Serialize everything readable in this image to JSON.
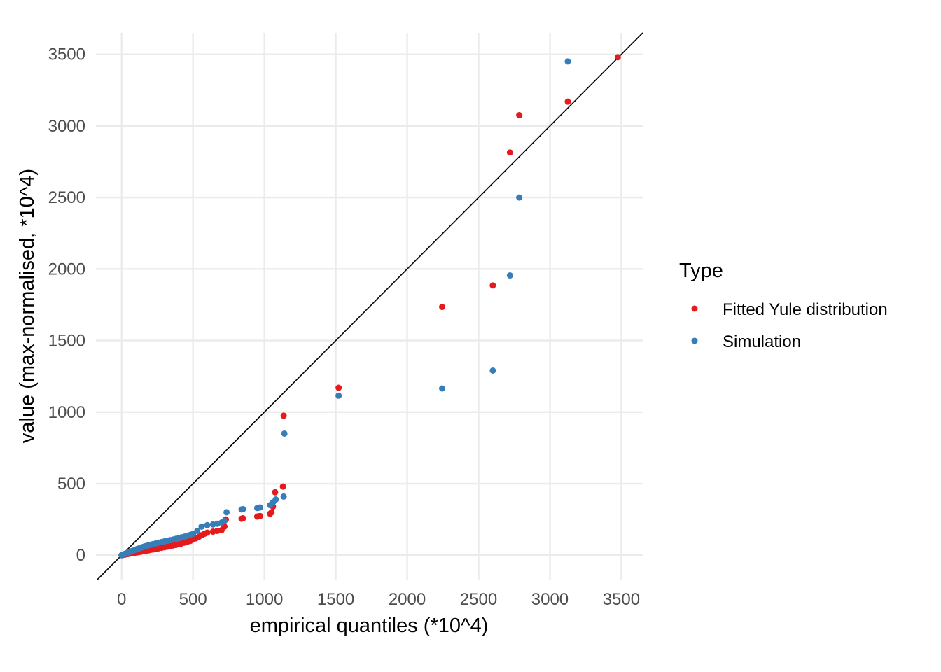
{
  "chart_data": {
    "type": "scatter",
    "title": "",
    "xlabel": "empirical quantiles (*10^4)",
    "ylabel": "value (max-normalised, *10^4)",
    "xlim": [
      -180,
      3650
    ],
    "ylim": [
      -170,
      3650
    ],
    "x_ticks": [
      0,
      500,
      1000,
      1500,
      2000,
      2500,
      3000,
      3500
    ],
    "y_ticks": [
      0,
      500,
      1000,
      1500,
      2000,
      2500,
      3000,
      3500
    ],
    "grid": true,
    "reference_line": {
      "slope": 1,
      "intercept": 0,
      "color": "#000000"
    },
    "legend": {
      "title": "Type",
      "position": "right"
    },
    "series": [
      {
        "name": "Fitted Yule distribution",
        "color": "#e41a1c",
        "points": [
          [
            0,
            0
          ],
          [
            10,
            2
          ],
          [
            20,
            4
          ],
          [
            30,
            6
          ],
          [
            40,
            8
          ],
          [
            50,
            10
          ],
          [
            60,
            12
          ],
          [
            70,
            14
          ],
          [
            80,
            15
          ],
          [
            90,
            17
          ],
          [
            100,
            19
          ],
          [
            110,
            21
          ],
          [
            120,
            22
          ],
          [
            130,
            24
          ],
          [
            140,
            26
          ],
          [
            150,
            28
          ],
          [
            160,
            29
          ],
          [
            170,
            31
          ],
          [
            180,
            33
          ],
          [
            190,
            35
          ],
          [
            200,
            37
          ],
          [
            220,
            40
          ],
          [
            240,
            44
          ],
          [
            260,
            48
          ],
          [
            280,
            52
          ],
          [
            300,
            56
          ],
          [
            320,
            60
          ],
          [
            340,
            64
          ],
          [
            360,
            68
          ],
          [
            380,
            72
          ],
          [
            400,
            77
          ],
          [
            420,
            82
          ],
          [
            440,
            88
          ],
          [
            460,
            94
          ],
          [
            480,
            100
          ],
          [
            500,
            110
          ],
          [
            520,
            118
          ],
          [
            540,
            128
          ],
          [
            560,
            140
          ],
          [
            580,
            150
          ],
          [
            600,
            158
          ],
          [
            640,
            165
          ],
          [
            670,
            170
          ],
          [
            700,
            175
          ],
          [
            720,
            200
          ],
          [
            730,
            250
          ],
          [
            840,
            255
          ],
          [
            850,
            258
          ],
          [
            950,
            270
          ],
          [
            960,
            272
          ],
          [
            970,
            274
          ],
          [
            1040,
            290
          ],
          [
            1050,
            300
          ],
          [
            1060,
            340
          ],
          [
            1075,
            440
          ],
          [
            1130,
            480
          ],
          [
            1135,
            975
          ],
          [
            1520,
            1170
          ],
          [
            2245,
            1735
          ],
          [
            2600,
            1885
          ],
          [
            2720,
            2815
          ],
          [
            2785,
            3075
          ],
          [
            3125,
            3170
          ],
          [
            3475,
            3480
          ]
        ]
      },
      {
        "name": "Simulation",
        "color": "#377eb8",
        "points": [
          [
            0,
            0
          ],
          [
            10,
            5
          ],
          [
            20,
            9
          ],
          [
            30,
            13
          ],
          [
            40,
            17
          ],
          [
            50,
            21
          ],
          [
            60,
            25
          ],
          [
            70,
            29
          ],
          [
            80,
            32
          ],
          [
            90,
            36
          ],
          [
            100,
            40
          ],
          [
            110,
            44
          ],
          [
            120,
            47
          ],
          [
            130,
            51
          ],
          [
            140,
            54
          ],
          [
            150,
            58
          ],
          [
            160,
            61
          ],
          [
            170,
            64
          ],
          [
            180,
            67
          ],
          [
            190,
            70
          ],
          [
            200,
            73
          ],
          [
            220,
            78
          ],
          [
            240,
            83
          ],
          [
            260,
            88
          ],
          [
            280,
            92
          ],
          [
            300,
            97
          ],
          [
            320,
            101
          ],
          [
            340,
            106
          ],
          [
            360,
            110
          ],
          [
            380,
            115
          ],
          [
            400,
            120
          ],
          [
            420,
            125
          ],
          [
            440,
            130
          ],
          [
            460,
            136
          ],
          [
            480,
            142
          ],
          [
            500,
            150
          ],
          [
            530,
            170
          ],
          [
            560,
            200
          ],
          [
            600,
            210
          ],
          [
            640,
            215
          ],
          [
            670,
            220
          ],
          [
            700,
            228
          ],
          [
            720,
            240
          ],
          [
            735,
            300
          ],
          [
            840,
            320
          ],
          [
            850,
            322
          ],
          [
            950,
            330
          ],
          [
            960,
            332
          ],
          [
            970,
            334
          ],
          [
            1040,
            350
          ],
          [
            1060,
            370
          ],
          [
            1080,
            390
          ],
          [
            1135,
            410
          ],
          [
            1140,
            850
          ],
          [
            1520,
            1115
          ],
          [
            2245,
            1165
          ],
          [
            2600,
            1290
          ],
          [
            2720,
            1955
          ],
          [
            2785,
            2500
          ],
          [
            3125,
            3450
          ]
        ]
      }
    ]
  }
}
